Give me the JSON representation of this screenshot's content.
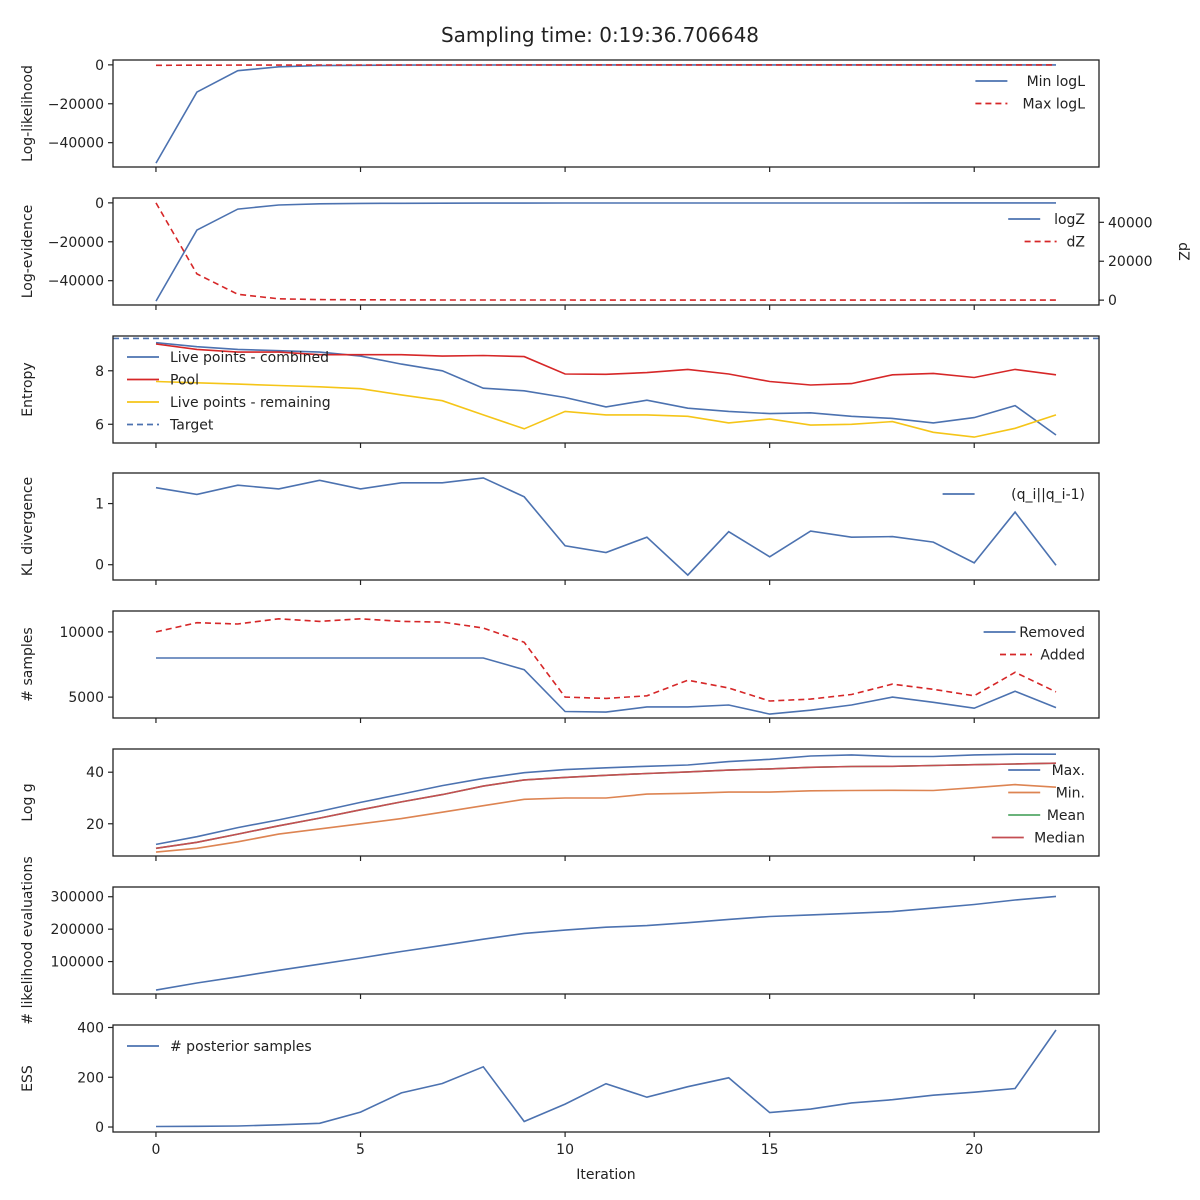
{
  "title": "Sampling time: 0:19:36.706648",
  "xlabel": "Iteration",
  "colors": {
    "blue": "#4c72b0",
    "red": "#d62728",
    "yellow": "#f5c518",
    "orange": "#dd8452",
    "green": "#55a868",
    "brown": "#c44e52"
  },
  "chart_data": [
    {
      "type": "line",
      "ylabel": "Log-likelihood",
      "ylim": [
        -52500,
        2500
      ],
      "yticks": [
        0,
        -20000,
        -40000
      ],
      "yticklabels": [
        "0",
        "−20000",
        "−40000"
      ],
      "legend_position": "top-right",
      "x": [
        0,
        1,
        2,
        3,
        4,
        5,
        6,
        7,
        8,
        9,
        10,
        11,
        12,
        13,
        14,
        15,
        16,
        17,
        18,
        19,
        20,
        21,
        22
      ],
      "series": [
        {
          "name": "Min logL",
          "color": "blue",
          "dash": false,
          "values": [
            -50500,
            -14000,
            -3000,
            -1000,
            -400,
            -200,
            -120,
            -80,
            -50,
            -40,
            -30,
            -25,
            -20,
            -18,
            -15,
            -12,
            -10,
            -9,
            -8,
            -7,
            -6,
            -5,
            -5
          ]
        },
        {
          "name": "Max logL",
          "color": "red",
          "dash": true,
          "values": [
            -200,
            -150,
            -120,
            -100,
            -90,
            -80,
            -70,
            -60,
            -55,
            -50,
            -45,
            -40,
            -38,
            -35,
            -33,
            -30,
            -28,
            -26,
            -25,
            -24,
            -23,
            -22,
            -21
          ]
        }
      ]
    },
    {
      "type": "line",
      "ylabel": "Log-evidence",
      "ylim": [
        -52500,
        2500
      ],
      "yticks": [
        0,
        -20000,
        -40000
      ],
      "yticklabels": [
        "0",
        "−20000",
        "−40000"
      ],
      "y2label": "dZ",
      "y2lim": [
        -2500,
        52500
      ],
      "y2ticks": [
        0,
        20000,
        40000
      ],
      "y2ticklabels": [
        "0",
        "20000",
        "40000"
      ],
      "legend_position": "top-right",
      "x": [
        0,
        1,
        2,
        3,
        4,
        5,
        6,
        7,
        8,
        9,
        10,
        11,
        12,
        13,
        14,
        15,
        16,
        17,
        18,
        19,
        20,
        21,
        22
      ],
      "series": [
        {
          "name": "logZ",
          "color": "blue",
          "dash": false,
          "axis": "left",
          "values": [
            -50500,
            -14000,
            -3200,
            -1100,
            -500,
            -300,
            -200,
            -150,
            -120,
            -100,
            -90,
            -80,
            -70,
            -65,
            -60,
            -55,
            -50,
            -48,
            -45,
            -43,
            -42,
            -41,
            -40
          ]
        },
        {
          "name": "dZ",
          "color": "red",
          "dash": true,
          "axis": "right",
          "values": [
            50000,
            13500,
            3000,
            700,
            300,
            150,
            100,
            80,
            60,
            50,
            45,
            40,
            38,
            35,
            33,
            30,
            28,
            26,
            25,
            24,
            23,
            22,
            21
          ]
        }
      ]
    },
    {
      "type": "line",
      "ylabel": "Entropy",
      "ylim": [
        5.3,
        9.3
      ],
      "yticks": [
        6,
        8
      ],
      "yticklabels": [
        "6",
        "8"
      ],
      "legend_position": "top-left",
      "x": [
        0,
        1,
        2,
        3,
        4,
        5,
        6,
        7,
        8,
        9,
        10,
        11,
        12,
        13,
        14,
        15,
        16,
        17,
        18,
        19,
        20,
        21,
        22
      ],
      "series": [
        {
          "name": "Live points - combined",
          "color": "blue",
          "dash": false,
          "values": [
            9.05,
            8.9,
            8.8,
            8.75,
            8.7,
            8.55,
            8.25,
            8.0,
            7.35,
            7.25,
            7.0,
            6.65,
            6.9,
            6.6,
            6.48,
            6.4,
            6.43,
            6.3,
            6.22,
            6.05,
            6.25,
            6.7,
            5.6
          ]
        },
        {
          "name": "Pool",
          "color": "red",
          "dash": false,
          "values": [
            9.0,
            8.8,
            8.7,
            8.7,
            8.6,
            8.6,
            8.6,
            8.55,
            8.57,
            8.53,
            7.88,
            7.87,
            7.93,
            8.05,
            7.88,
            7.6,
            7.47,
            7.52,
            7.85,
            7.9,
            7.75,
            8.05,
            7.85
          ]
        },
        {
          "name": "Live points - remaining",
          "color": "yellow",
          "dash": false,
          "values": [
            7.6,
            7.55,
            7.5,
            7.45,
            7.4,
            7.33,
            7.1,
            6.88,
            6.35,
            5.83,
            6.48,
            6.35,
            6.35,
            6.3,
            6.05,
            6.2,
            5.97,
            6.0,
            6.1,
            5.7,
            5.52,
            5.85,
            6.35
          ]
        },
        {
          "name": "Target",
          "color": "blue",
          "dash": true,
          "constant": 9.21
        }
      ]
    },
    {
      "type": "line",
      "ylabel": "KL divergence",
      "ylim": [
        -0.25,
        1.5
      ],
      "yticks": [
        0,
        1
      ],
      "yticklabels": [
        "0",
        "1"
      ],
      "legend_position": "top-right",
      "x": [
        0,
        1,
        2,
        3,
        4,
        5,
        6,
        7,
        8,
        9,
        10,
        11,
        12,
        13,
        14,
        15,
        16,
        17,
        18,
        19,
        20,
        21,
        22
      ],
      "series": [
        {
          "name": "(q_i||q_i-1)",
          "color": "blue",
          "dash": false,
          "values": [
            1.26,
            1.15,
            1.3,
            1.24,
            1.38,
            1.24,
            1.34,
            1.34,
            1.42,
            1.11,
            0.31,
            0.2,
            0.45,
            -0.17,
            0.54,
            0.13,
            0.55,
            0.45,
            0.46,
            0.37,
            0.03,
            0.86,
            -0.01
          ]
        }
      ]
    },
    {
      "type": "line",
      "ylabel": "# samples",
      "ylim": [
        3400,
        11600
      ],
      "yticks": [
        10000,
        5000
      ],
      "yticklabels": [
        "10000",
        "5000"
      ],
      "legend_position": "top-right",
      "x": [
        0,
        1,
        2,
        3,
        4,
        5,
        6,
        7,
        8,
        9,
        10,
        11,
        12,
        13,
        14,
        15,
        16,
        17,
        18,
        19,
        20,
        21,
        22
      ],
      "series": [
        {
          "name": "Removed",
          "color": "blue",
          "dash": false,
          "values": [
            8000,
            8000,
            8000,
            8000,
            8000,
            8000,
            8000,
            8000,
            8000,
            7100,
            3900,
            3850,
            4250,
            4250,
            4400,
            3700,
            4000,
            4400,
            5000,
            4600,
            4150,
            5450,
            4200
          ]
        },
        {
          "name": "Added",
          "color": "red",
          "dash": true,
          "values": [
            10000,
            10700,
            10600,
            11000,
            10800,
            11000,
            10800,
            10750,
            10300,
            9200,
            5000,
            4900,
            5100,
            6300,
            5700,
            4700,
            4850,
            5200,
            6000,
            5600,
            5100,
            6900,
            5400
          ]
        }
      ]
    },
    {
      "type": "line",
      "ylabel": "Log g",
      "ylim": [
        7.5,
        49
      ],
      "yticks": [
        40,
        20
      ],
      "yticklabels": [
        "40",
        "20"
      ],
      "legend_position": "top-right",
      "x": [
        0,
        1,
        2,
        3,
        4,
        5,
        6,
        7,
        8,
        9,
        10,
        11,
        12,
        13,
        14,
        15,
        16,
        17,
        18,
        19,
        20,
        21,
        22
      ],
      "series": [
        {
          "name": "Max.",
          "color": "blue",
          "dash": false,
          "values": [
            12,
            15,
            18.5,
            21.5,
            24.8,
            28.3,
            31.5,
            34.8,
            37.6,
            39.8,
            41.0,
            41.7,
            42.3,
            42.8,
            44.1,
            45.0,
            46.3,
            46.7,
            46.1,
            46.1,
            46.7,
            47.0,
            47.0
          ]
        },
        {
          "name": "Min.",
          "color": "orange",
          "dash": false,
          "values": [
            9,
            10.5,
            13,
            16,
            18,
            20,
            22,
            24.5,
            27,
            29.5,
            30,
            30,
            31.5,
            31.8,
            32.3,
            32.3,
            32.8,
            32.9,
            33.0,
            32.9,
            34.0,
            35.2,
            34.2
          ]
        },
        {
          "name": "Mean",
          "color": "green",
          "dash": false,
          "values": [
            10.5,
            12.8,
            16,
            19.2,
            22.2,
            25.4,
            28.5,
            31.3,
            34.6,
            37.0,
            38.0,
            38.8,
            39.5,
            40.1,
            40.8,
            41.3,
            41.9,
            42.2,
            42.3,
            42.6,
            42.9,
            43.2,
            43.5
          ]
        },
        {
          "name": "Median",
          "color": "brown",
          "dash": false,
          "values": [
            10.5,
            12.8,
            16,
            19.2,
            22.2,
            25.4,
            28.5,
            31.3,
            34.6,
            37.0,
            38.0,
            38.8,
            39.5,
            40.1,
            40.8,
            41.3,
            41.9,
            42.2,
            42.3,
            42.6,
            42.9,
            43.2,
            43.5
          ]
        }
      ]
    },
    {
      "type": "line",
      "ylabel": "# likelihood evaluations",
      "ylim": [
        0,
        330000
      ],
      "yticks": [
        300000,
        200000,
        100000
      ],
      "yticklabels": [
        "300000",
        "200000",
        "100000"
      ],
      "x": [
        0,
        1,
        2,
        3,
        4,
        5,
        6,
        7,
        8,
        9,
        10,
        11,
        12,
        13,
        14,
        15,
        16,
        17,
        18,
        19,
        20,
        21,
        22
      ],
      "series": [
        {
          "name": "",
          "color": "blue",
          "dash": false,
          "values": [
            12000,
            34000,
            53000,
            73000,
            92000,
            111000,
            131000,
            150000,
            169000,
            187000,
            197000,
            206000,
            211000,
            220000,
            230000,
            239000,
            244000,
            249000,
            254000,
            265000,
            276000,
            290000,
            301000
          ]
        }
      ]
    },
    {
      "type": "line",
      "ylabel": "ESS",
      "ylim": [
        -20,
        410
      ],
      "yticks": [
        400,
        200,
        0
      ],
      "yticklabels": [
        "400",
        "200",
        "0"
      ],
      "legend_position": "top-left",
      "xticks": [
        0,
        5,
        10,
        15,
        20
      ],
      "xticklabels": [
        "0",
        "5",
        "10",
        "15",
        "20"
      ],
      "x": [
        0,
        1,
        2,
        3,
        4,
        5,
        6,
        7,
        8,
        9,
        10,
        11,
        12,
        13,
        14,
        15,
        16,
        17,
        18,
        19,
        20,
        21,
        22
      ],
      "series": [
        {
          "name": "# posterior samples",
          "color": "blue",
          "dash": false,
          "values": [
            2,
            3,
            4,
            9,
            15,
            60,
            137,
            175,
            242,
            22,
            92,
            174,
            120,
            162,
            198,
            58,
            72,
            97,
            110,
            128,
            140,
            155,
            390
          ]
        }
      ]
    }
  ]
}
